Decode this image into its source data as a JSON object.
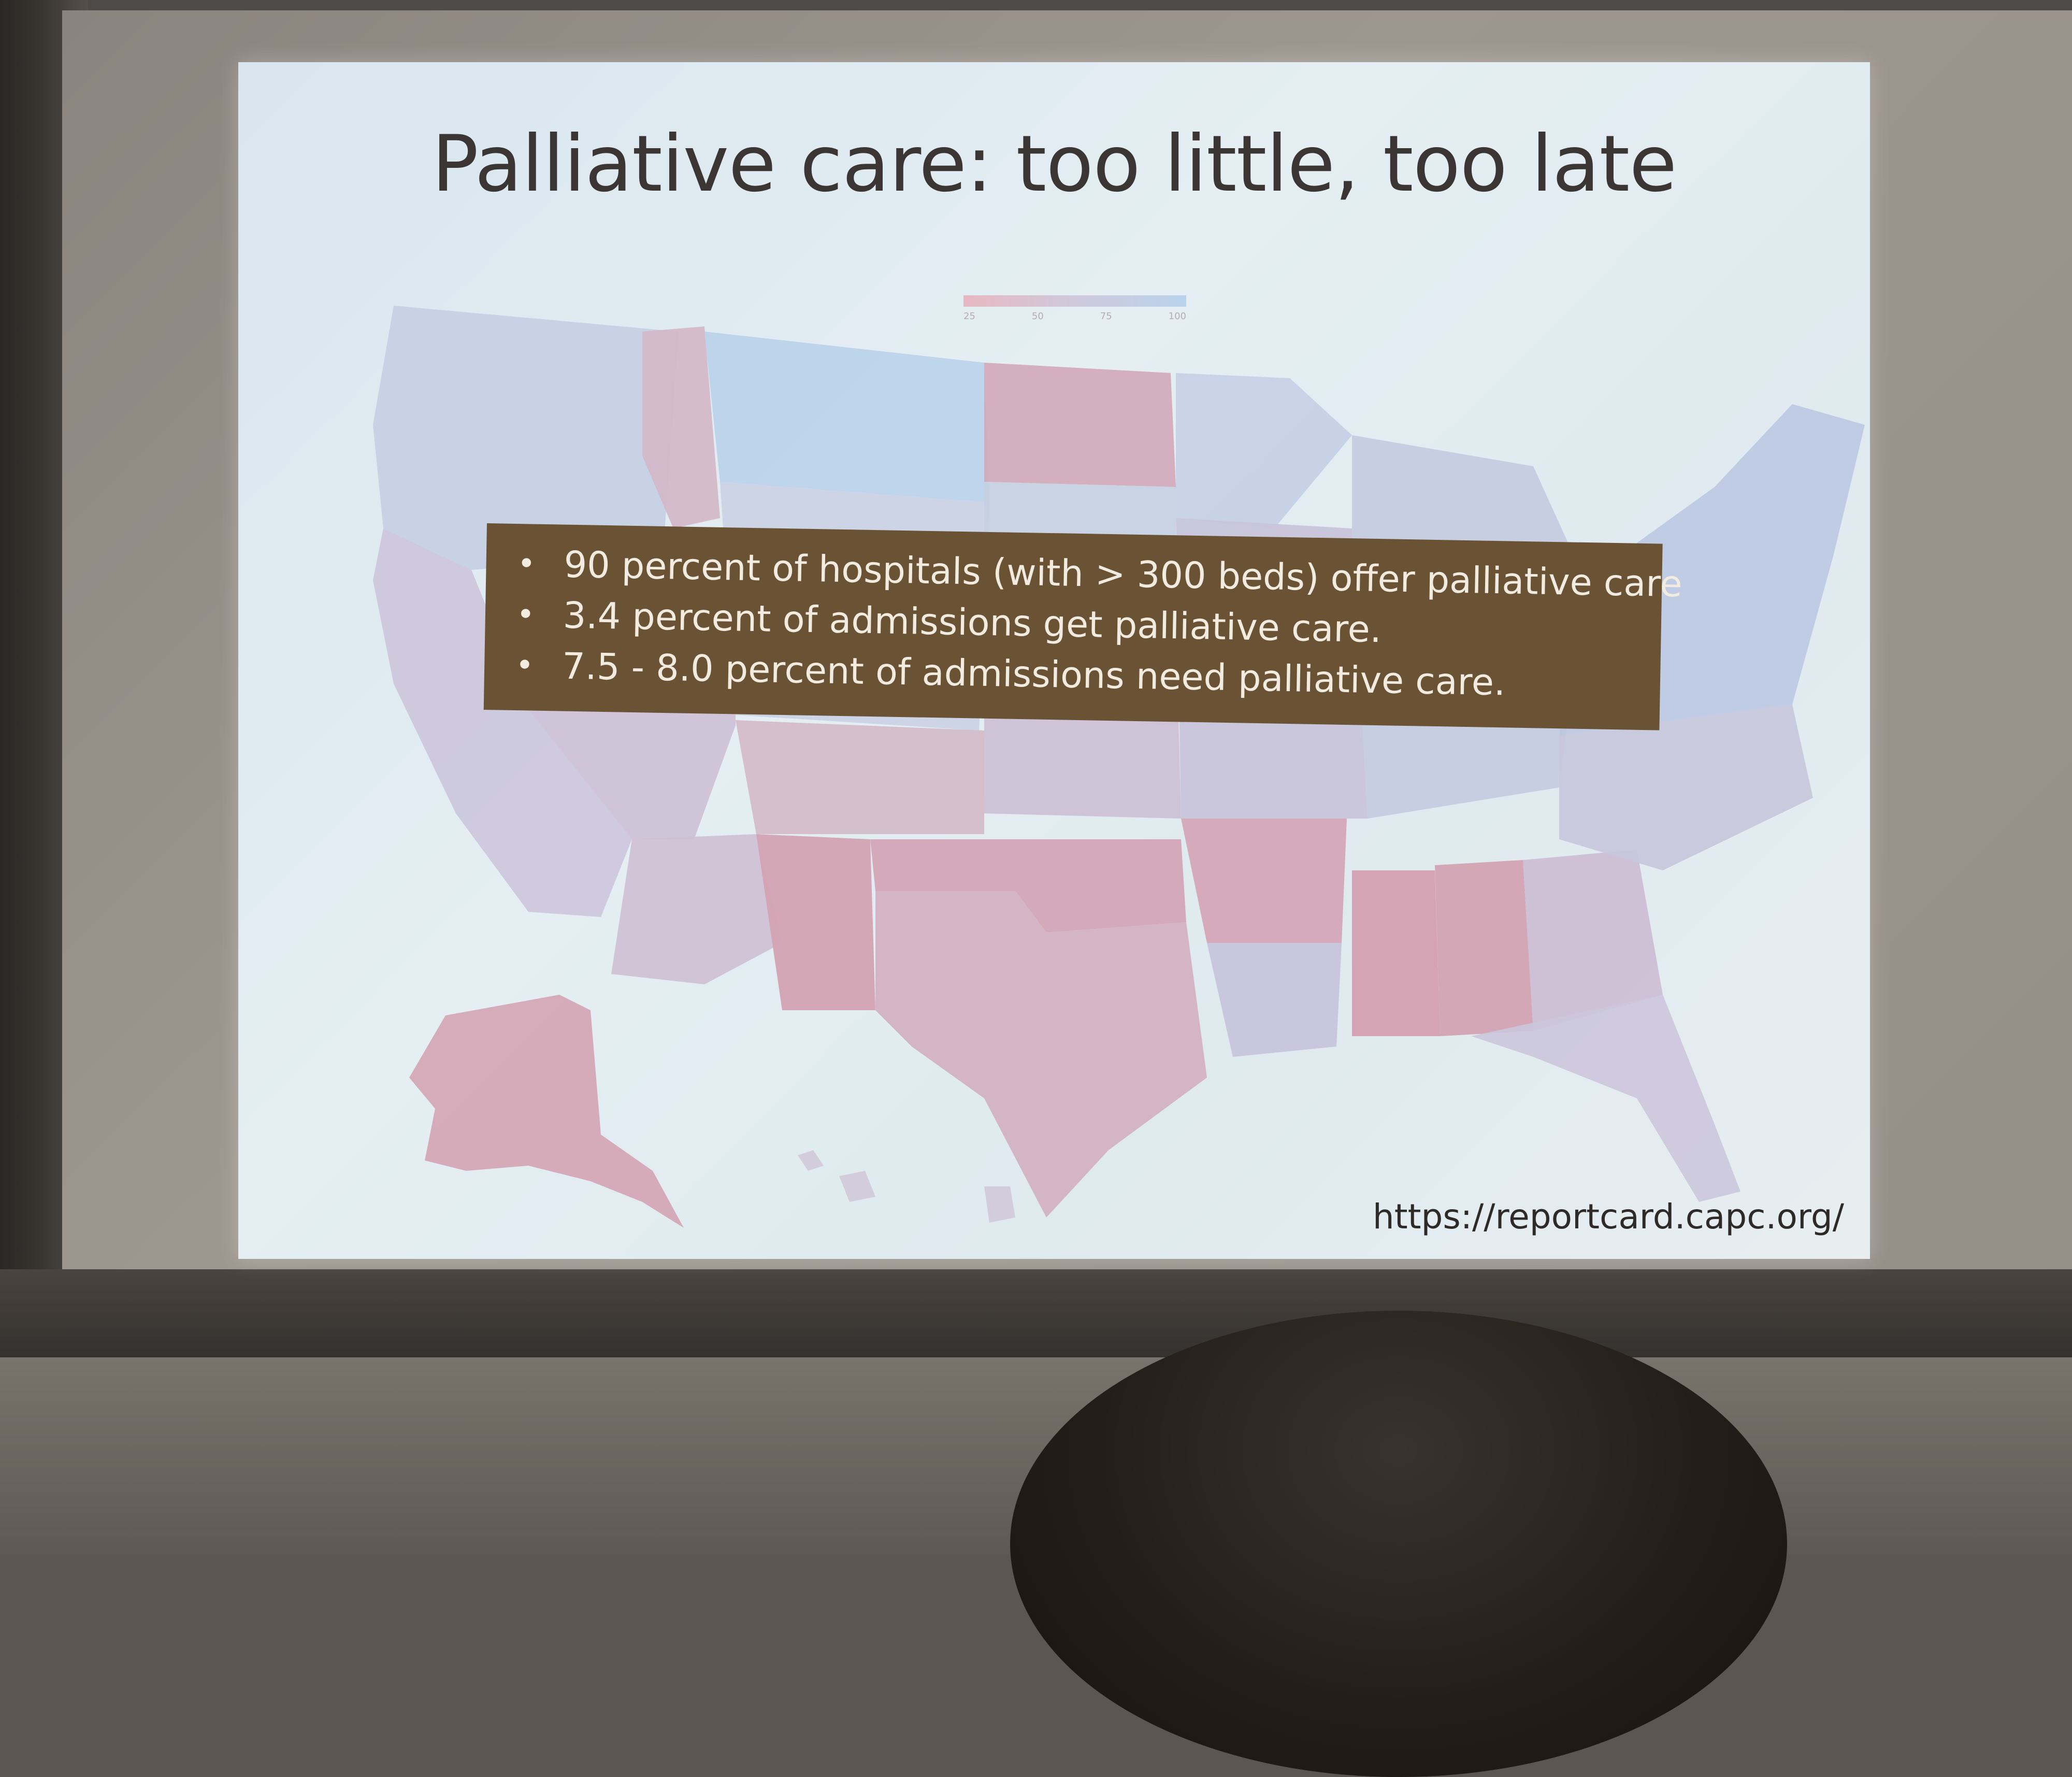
{
  "slide": {
    "title": "Palliative care: too little, too late",
    "legend_ticks": [
      "25",
      "50",
      "75",
      "100"
    ],
    "bullets": [
      "90 percent of hospitals (with > 300 beds) offer palliative care",
      "3.4 percent of admissions get palliative care.",
      "7.5 - 8.0 percent of admissions need palliative care."
    ],
    "source_url": "https://reportcard.capc.org/"
  },
  "colors": {
    "bullet_box": "#6a5234",
    "map_low": "#d9a8b4",
    "map_high": "#b5cde6"
  }
}
